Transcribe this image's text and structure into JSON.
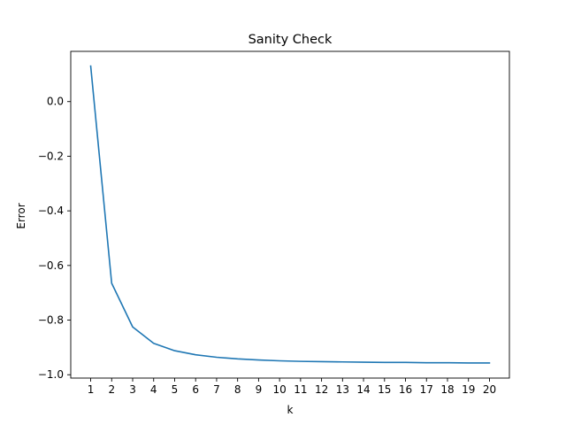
{
  "chart_data": {
    "type": "line",
    "title": "Sanity Check",
    "xlabel": "k",
    "ylabel": "Error",
    "x": [
      1,
      2,
      3,
      4,
      5,
      6,
      7,
      8,
      9,
      10,
      11,
      12,
      13,
      14,
      15,
      16,
      17,
      18,
      19,
      20
    ],
    "series": [
      {
        "values": [
          0.13,
          -0.665,
          -0.825,
          -0.885,
          -0.912,
          -0.927,
          -0.936,
          -0.942,
          -0.946,
          -0.949,
          -0.951,
          -0.952,
          -0.953,
          -0.954,
          -0.955,
          -0.955,
          -0.956,
          -0.956,
          -0.957,
          -0.957
        ],
        "color": "#1f77b4"
      }
    ],
    "xticks": [
      "1",
      "2",
      "3",
      "4",
      "5",
      "6",
      "7",
      "8",
      "9",
      "10",
      "11",
      "12",
      "13",
      "14",
      "15",
      "16",
      "17",
      "18",
      "19",
      "20"
    ],
    "yticks": [
      {
        "value": 0.0,
        "label": "0.0"
      },
      {
        "value": -0.2,
        "label": "−0.2"
      },
      {
        "value": -0.4,
        "label": "−0.4"
      },
      {
        "value": -0.6,
        "label": "−0.6"
      },
      {
        "value": -0.8,
        "label": "−0.8"
      },
      {
        "value": -1.0,
        "label": "−1.0"
      }
    ],
    "xlim": [
      0.05,
      20.95
    ],
    "ylim": [
      -1.0122,
      0.1839
    ],
    "grid": false
  }
}
